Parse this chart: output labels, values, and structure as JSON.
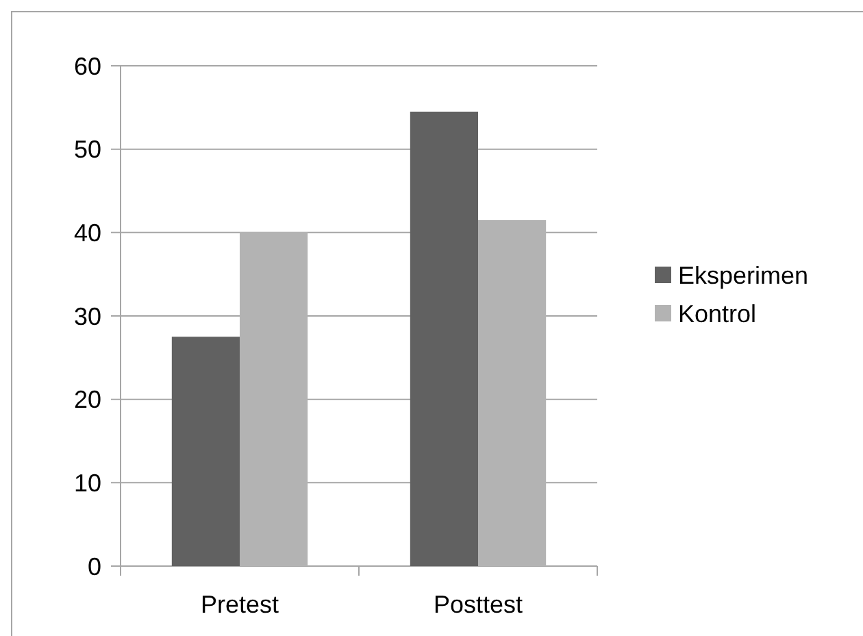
{
  "chart_data": {
    "type": "bar",
    "categories": [
      "Pretest",
      "Posttest"
    ],
    "series": [
      {
        "name": "Eksperimen",
        "color": "#616161",
        "values": [
          27.5,
          54.5
        ]
      },
      {
        "name": "Kontrol",
        "color": "#b3b3b3",
        "values": [
          40,
          41.5
        ]
      }
    ],
    "ylim": [
      0,
      60
    ],
    "yticks": [
      0,
      10,
      20,
      30,
      40,
      50,
      60
    ],
    "grid": "y",
    "legend": "right"
  }
}
